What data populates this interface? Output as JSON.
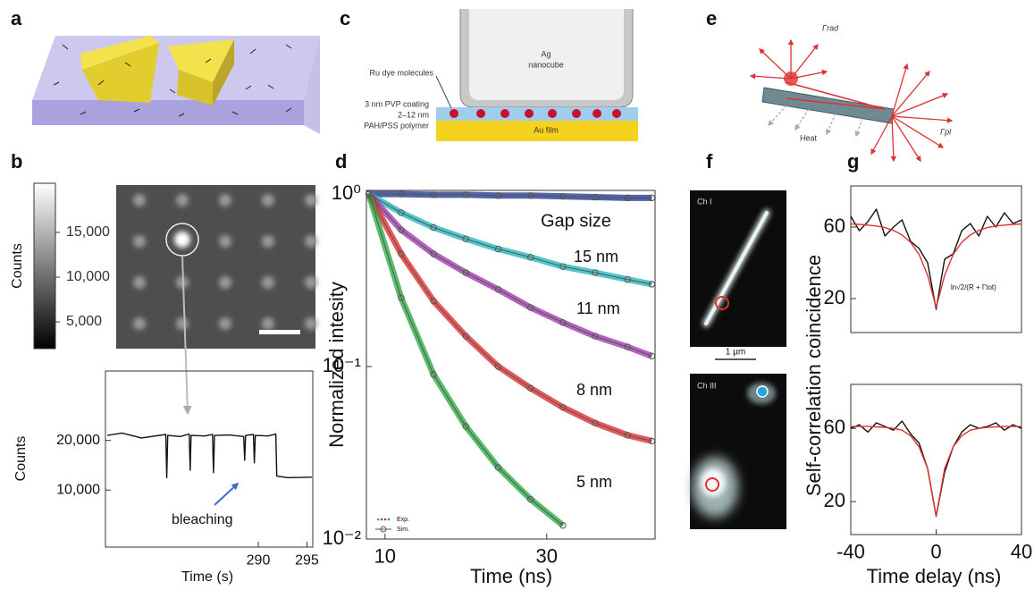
{
  "panel_letters": [
    "a",
    "b",
    "c",
    "d",
    "e",
    "f",
    "g"
  ],
  "diagram_c": {
    "dye": "Ru dye molecules",
    "cube": [
      "Ag",
      "nanocube"
    ],
    "pvp": "3 nm PVP coating",
    "gap": "2–12 nm",
    "polymer": "PAH/PSS polymer",
    "film": "Au film"
  },
  "diagram_e": {
    "rad": "Γrad",
    "pl": "Γpl",
    "heat": "Heat"
  },
  "images_f": {
    "top": "Ch I",
    "bottom": "Ch III",
    "scale": "1 μm"
  },
  "chart_data": [
    {
      "type": "colorbar",
      "ylabel": "Counts",
      "ylim": [
        2000,
        20500
      ],
      "colors": [
        "#000000",
        "#ffffff"
      ],
      "yticks": [
        {
          "value": 5000,
          "label": "5,000"
        },
        {
          "value": 10000,
          "label": "10,000"
        },
        {
          "value": 15000,
          "label": "15,000"
        }
      ]
    },
    {
      "type": "line",
      "xlabel": "Time (s)",
      "ylabel": "Counts",
      "annotations": [
        "bleaching"
      ],
      "x": [
        274.5,
        276,
        278,
        280.5,
        280.6,
        280.7,
        282,
        282.9,
        283,
        283.1,
        284.5,
        285.3,
        285.4,
        285.5,
        287,
        288.5,
        288.6,
        288.7,
        289.5,
        289.6,
        289.7,
        291,
        291.8,
        291.9,
        293,
        295.5
      ],
      "series": [
        {
          "color": "#111111",
          "values": [
            21000,
            21500,
            20500,
            21200,
            12500,
            21000,
            20800,
            21300,
            14000,
            21000,
            20900,
            21200,
            13500,
            21000,
            21100,
            20800,
            16000,
            21000,
            21200,
            15500,
            21000,
            20900,
            21300,
            12800,
            12500,
            12600
          ]
        }
      ],
      "xlim": [
        274.3,
        295.6
      ],
      "xticks": [
        290,
        295
      ],
      "ylim": [
        -1500,
        34000
      ],
      "yticks": [
        {
          "value": 10000,
          "label": "10,000"
        },
        {
          "value": 20000,
          "label": "20,000"
        }
      ]
    },
    {
      "type": "line",
      "log_y": true,
      "markers": true,
      "xlabel": "Time (ns)",
      "ylabel": "Normalized intesity",
      "annotations": [
        "Gap size"
      ],
      "legend": [
        "Exp.",
        "Sim."
      ],
      "x": [
        8,
        12,
        16,
        20,
        24,
        28,
        32,
        36,
        40,
        43
      ],
      "series": [
        {
          "color": "#1a2f8a",
          "values": [
            1,
            1,
            0.99,
            0.99,
            0.98,
            0.98,
            0.97,
            0.96,
            0.95,
            0.95
          ]
        },
        {
          "name": "15 nm",
          "color": "#1ab3b8",
          "values": [
            1,
            0.78,
            0.64,
            0.55,
            0.48,
            0.43,
            0.38,
            0.35,
            0.32,
            0.3
          ]
        },
        {
          "name": "11 nm",
          "color": "#9b2fa8",
          "values": [
            1,
            0.62,
            0.45,
            0.35,
            0.28,
            0.22,
            0.18,
            0.15,
            0.13,
            0.115
          ]
        },
        {
          "name": "8 nm",
          "color": "#e02020",
          "values": [
            1,
            0.45,
            0.24,
            0.15,
            0.1,
            0.075,
            0.058,
            0.047,
            0.04,
            0.037
          ]
        },
        {
          "name": "5 nm",
          "color": "#22a83a",
          "values": [
            1,
            0.25,
            0.09,
            0.045,
            0.026,
            0.017,
            0.012,
            null,
            null,
            null
          ]
        }
      ],
      "xlim": [
        7.7,
        43.4
      ],
      "xticks": [
        10,
        30
      ],
      "ylim": [
        0.01,
        1.05
      ],
      "yticks": [
        {
          "value": 1,
          "label": "10⁰"
        },
        {
          "value": 0.1,
          "label": "10⁻¹"
        },
        {
          "value": 0.01,
          "label": "10⁻²"
        }
      ]
    },
    {
      "type": "line",
      "ylabel": "Self-correlation coincidence",
      "annotations": [
        "ln√2/(R + Γtot)"
      ],
      "x": [
        -40,
        -36,
        -32,
        -28,
        -24,
        -20,
        -16,
        -12,
        -8,
        -4,
        0,
        4,
        8,
        12,
        16,
        20,
        24,
        28,
        32,
        36,
        40
      ],
      "series": [
        {
          "color": "#111111",
          "values": [
            66,
            58,
            63,
            70,
            55,
            60,
            64,
            52,
            48,
            40,
            14,
            42,
            45,
            58,
            62,
            55,
            66,
            60,
            68,
            62,
            64
          ]
        },
        {
          "color": "#e03030",
          "values": [
            61.7,
            61.5,
            61.1,
            60.6,
            59.7,
            58.1,
            55.6,
            51.5,
            44.7,
            33,
            15,
            33,
            44.7,
            51.5,
            55.6,
            58.1,
            59.7,
            60.6,
            61.1,
            61.5,
            61.7
          ]
        }
      ],
      "xlim": [
        -40,
        40
      ],
      "ylim": [
        1,
        83
      ],
      "yticks": [
        20,
        60
      ]
    },
    {
      "type": "line",
      "xlabel": "Time delay (ns)",
      "x": [
        -40,
        -36,
        -32,
        -28,
        -24,
        -20,
        -16,
        -12,
        -8,
        -4,
        0,
        4,
        8,
        12,
        16,
        20,
        24,
        28,
        32,
        36,
        40
      ],
      "series": [
        {
          "color": "#111111",
          "values": [
            60,
            62,
            58,
            63,
            61,
            59,
            64,
            57,
            52,
            38,
            12,
            36,
            50,
            58,
            62,
            60,
            61,
            63,
            59,
            62,
            60
          ]
        },
        {
          "color": "#e03030",
          "values": [
            61,
            61,
            61,
            60.8,
            60.5,
            60,
            59,
            56,
            50,
            38,
            12,
            38,
            50,
            56,
            59,
            60,
            60.5,
            60.8,
            61,
            61,
            61
          ]
        }
      ],
      "xlim": [
        -40,
        40
      ],
      "xticks": [
        -40,
        0,
        40
      ],
      "ylim": [
        2,
        84
      ],
      "yticks": [
        20,
        60
      ]
    }
  ]
}
